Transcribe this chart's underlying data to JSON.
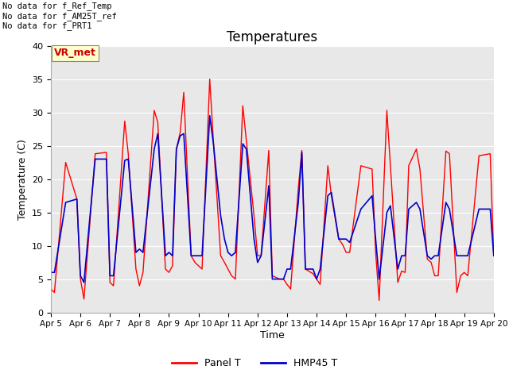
{
  "title": "Temperatures",
  "xlabel": "Time",
  "ylabel": "Temperature (C)",
  "ylim": [
    0,
    40
  ],
  "background_color": "#e8e8e8",
  "annotations": [
    "No data for f_Ref_Temp",
    "No data for f_AM25T_ref",
    "No data for f_PRT1"
  ],
  "vr_met_label": "VR_met",
  "legend_labels": [
    "Panel T",
    "HMP45 T"
  ],
  "legend_colors": [
    "#ff0000",
    "#0000cc"
  ],
  "xtick_labels": [
    "Apr 5",
    "Apr 6",
    "Apr 7",
    "Apr 8",
    "Apr 9",
    "Apr 10",
    "Apr 11",
    "Apr 12",
    "Apr 13",
    "Apr 14",
    "Apr 15",
    "Apr 16",
    "Apr 17",
    "Apr 18",
    "Apr 19",
    "Apr 20"
  ],
  "ytick_values": [
    0,
    5,
    10,
    15,
    20,
    25,
    30,
    35,
    40
  ],
  "panel_t_x": [
    0.0,
    0.12,
    0.5,
    0.88,
    1.0,
    1.0,
    1.12,
    1.5,
    1.88,
    2.0,
    2.0,
    2.12,
    2.5,
    2.62,
    2.88,
    3.0,
    3.0,
    3.12,
    3.5,
    3.62,
    3.88,
    4.0,
    4.0,
    4.12,
    4.25,
    4.38,
    4.5,
    4.75,
    4.88,
    5.0,
    5.0,
    5.12,
    5.38,
    5.5,
    5.75,
    5.88,
    6.0,
    6.0,
    6.12,
    6.25,
    6.5,
    6.62,
    6.88,
    7.0,
    7.0,
    7.12,
    7.38,
    7.5,
    7.75,
    7.88,
    8.0,
    8.0,
    8.12,
    8.38,
    8.5,
    8.62,
    8.88,
    9.0,
    9.0,
    9.12,
    9.38,
    9.5,
    9.75,
    9.88,
    10.0,
    10.0,
    10.12,
    10.5,
    10.88,
    11.0,
    11.0,
    11.12,
    11.38,
    11.5,
    11.75,
    11.88,
    12.0,
    12.0,
    12.12,
    12.38,
    12.5,
    12.75,
    12.88,
    13.0,
    13.0,
    13.12,
    13.38,
    13.5,
    13.75,
    13.88,
    14.0,
    14.0,
    14.12,
    14.5,
    14.88,
    15.0
  ],
  "panel_t_y": [
    3.5,
    3.0,
    22.5,
    17.0,
    5.0,
    5.0,
    2.0,
    23.8,
    24.0,
    4.5,
    4.5,
    4.0,
    28.7,
    23.8,
    6.5,
    4.0,
    4.0,
    6.0,
    30.3,
    28.5,
    6.5,
    6.0,
    6.0,
    7.0,
    24.5,
    27.0,
    33.0,
    8.5,
    7.5,
    7.0,
    7.0,
    6.5,
    35.0,
    26.0,
    8.5,
    7.5,
    6.5,
    6.5,
    5.5,
    5.0,
    31.0,
    25.8,
    14.5,
    8.5,
    8.5,
    8.5,
    24.3,
    5.5,
    5.0,
    5.0,
    4.2,
    4.2,
    3.5,
    18.6,
    24.3,
    6.5,
    5.8,
    5.0,
    5.0,
    4.2,
    22.0,
    17.5,
    11.0,
    10.2,
    9.0,
    9.0,
    9.0,
    22.0,
    21.5,
    9.0,
    9.0,
    1.8,
    30.3,
    22.0,
    4.5,
    6.2,
    6.0,
    6.0,
    22.0,
    24.5,
    21.5,
    8.0,
    7.5,
    5.5,
    5.5,
    5.5,
    24.2,
    23.8,
    3.0,
    5.5,
    6.0,
    6.0,
    5.5,
    23.5,
    23.8,
    8.5
  ],
  "hmp45_t_x": [
    0.0,
    0.12,
    0.5,
    0.88,
    1.0,
    1.0,
    1.12,
    1.5,
    1.88,
    2.0,
    2.0,
    2.12,
    2.5,
    2.62,
    2.88,
    3.0,
    3.0,
    3.12,
    3.5,
    3.62,
    3.88,
    4.0,
    4.0,
    4.12,
    4.25,
    4.38,
    4.5,
    4.75,
    4.88,
    5.0,
    5.0,
    5.12,
    5.38,
    5.5,
    5.75,
    5.88,
    6.0,
    6.0,
    6.12,
    6.25,
    6.5,
    6.62,
    6.88,
    7.0,
    7.0,
    7.12,
    7.38,
    7.5,
    7.75,
    7.88,
    8.0,
    8.0,
    8.12,
    8.38,
    8.5,
    8.62,
    8.88,
    9.0,
    9.0,
    9.12,
    9.38,
    9.5,
    9.75,
    9.88,
    10.0,
    10.0,
    10.12,
    10.5,
    10.88,
    11.0,
    11.0,
    11.12,
    11.38,
    11.5,
    11.75,
    11.88,
    12.0,
    12.0,
    12.12,
    12.38,
    12.5,
    12.75,
    12.88,
    13.0,
    13.0,
    13.12,
    13.38,
    13.5,
    13.75,
    13.88,
    14.0,
    14.0,
    14.12,
    14.5,
    14.88,
    15.0
  ],
  "hmp45_t_y": [
    6.0,
    6.0,
    16.5,
    17.0,
    5.5,
    5.5,
    4.5,
    23.0,
    23.0,
    5.5,
    5.5,
    5.5,
    22.8,
    23.0,
    9.0,
    9.5,
    9.5,
    9.0,
    24.5,
    26.8,
    8.5,
    9.0,
    9.0,
    8.5,
    24.5,
    26.5,
    26.8,
    8.5,
    8.5,
    8.5,
    8.5,
    8.5,
    29.5,
    25.5,
    14.5,
    11.0,
    9.0,
    9.0,
    8.5,
    9.0,
    25.3,
    24.5,
    11.0,
    7.5,
    7.5,
    8.5,
    19.0,
    5.0,
    5.0,
    5.0,
    6.5,
    6.5,
    6.5,
    16.5,
    24.0,
    6.5,
    6.5,
    5.0,
    5.0,
    6.5,
    17.5,
    18.0,
    11.0,
    11.0,
    11.0,
    11.0,
    10.5,
    15.5,
    17.5,
    11.0,
    11.0,
    5.0,
    15.0,
    16.0,
    6.5,
    8.5,
    8.5,
    8.5,
    15.5,
    16.5,
    15.5,
    8.5,
    8.0,
    8.5,
    8.5,
    8.5,
    16.5,
    15.5,
    8.5,
    8.5,
    8.5,
    8.5,
    8.5,
    15.5,
    15.5,
    8.5
  ]
}
